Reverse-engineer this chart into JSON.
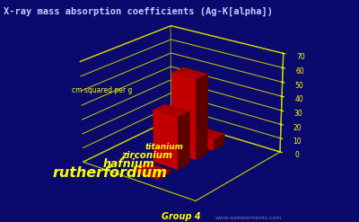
{
  "title": "X-ray mass absorption coefficients (Ag-K[alpha])",
  "ylabel": "cm squared per g",
  "group_label": "Group 4",
  "watermark": "www.webelements.com",
  "elements": [
    "titanium",
    "zirconium",
    "hafnium",
    "rutherfordium"
  ],
  "values": [
    8.0,
    57.0,
    37.0,
    2.0
  ],
  "bar_color": "#dd0000",
  "background_color": "#0a0a6e",
  "grid_color": "#cccc00",
  "text_color": "#ffff00",
  "title_color": "#c8c8ff",
  "watermark_color": "#8888cc",
  "ylim": [
    0,
    70
  ],
  "yticks": [
    0,
    10,
    20,
    30,
    40,
    50,
    60,
    70
  ],
  "elev": 22,
  "azim": -52,
  "elem_fontsizes": [
    6.5,
    7.5,
    9.0,
    11.5
  ],
  "elem_fontstyle": "italic"
}
